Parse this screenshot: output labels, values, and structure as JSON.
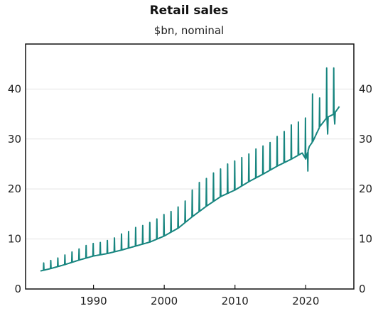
{
  "chart_data": {
    "type": "line",
    "title": "Retail sales",
    "subtitle": "$bn, nominal",
    "xlabel": "",
    "ylabel": "",
    "xlim": [
      1980.4,
      2026.8
    ],
    "ylim": [
      0,
      49
    ],
    "grid": true,
    "legend": "none",
    "x_ticks": [
      1990,
      2000,
      2010,
      2020
    ],
    "x_tick_labels": [
      "1990",
      "2000",
      "2010",
      "2020"
    ],
    "y_ticks": [
      0,
      10,
      20,
      30,
      40
    ],
    "y_tick_labels_left": [
      "0",
      "10",
      "20",
      "30",
      "40"
    ],
    "y_tick_labels_right": [
      "0",
      "10",
      "20",
      "30",
      "40"
    ],
    "series": [
      {
        "color": "#17857f",
        "frequency": "monthly",
        "start": 1982.5,
        "end": 2024.75,
        "trend_points": [
          [
            1982.5,
            3.6
          ],
          [
            1984,
            4.1
          ],
          [
            1986,
            4.9
          ],
          [
            1988,
            5.8
          ],
          [
            1990,
            6.6
          ],
          [
            1992,
            7.1
          ],
          [
            1994,
            7.8
          ],
          [
            1996,
            8.6
          ],
          [
            1998,
            9.4
          ],
          [
            2000,
            10.6
          ],
          [
            2002,
            12.2
          ],
          [
            2004,
            14.5
          ],
          [
            2006,
            16.6
          ],
          [
            2008,
            18.5
          ],
          [
            2010,
            19.8
          ],
          [
            2012,
            21.5
          ],
          [
            2014,
            23.0
          ],
          [
            2016,
            24.6
          ],
          [
            2018,
            26.0
          ],
          [
            2019.5,
            27.2
          ],
          [
            2020,
            26.0
          ],
          [
            2020.5,
            28.5
          ],
          [
            2021,
            29.5
          ],
          [
            2022,
            32.5
          ],
          [
            2023,
            34.3
          ],
          [
            2024,
            35.0
          ],
          [
            2024.75,
            36.5
          ]
        ],
        "december_peaks": [
          [
            1982.96,
            5.2
          ],
          [
            1983.96,
            5.7
          ],
          [
            1984.96,
            6.2
          ],
          [
            1985.96,
            6.8
          ],
          [
            1986.96,
            7.4
          ],
          [
            1987.96,
            8.0
          ],
          [
            1988.96,
            8.7
          ],
          [
            1989.96,
            9.1
          ],
          [
            1990.96,
            9.3
          ],
          [
            1991.96,
            9.7
          ],
          [
            1992.96,
            10.2
          ],
          [
            1993.96,
            11.0
          ],
          [
            1994.96,
            11.5
          ],
          [
            1995.96,
            12.3
          ],
          [
            1996.96,
            12.7
          ],
          [
            1997.96,
            13.3
          ],
          [
            1998.96,
            14.0
          ],
          [
            1999.96,
            14.9
          ],
          [
            2000.96,
            15.5
          ],
          [
            2001.96,
            16.4
          ],
          [
            2002.96,
            17.6
          ],
          [
            2003.96,
            19.8
          ],
          [
            2004.96,
            21.3
          ],
          [
            2005.96,
            22.1
          ],
          [
            2006.96,
            23.2
          ],
          [
            2007.96,
            24.0
          ],
          [
            2008.96,
            25.0
          ],
          [
            2009.96,
            25.6
          ],
          [
            2010.96,
            26.3
          ],
          [
            2011.96,
            27.0
          ],
          [
            2012.96,
            28.0
          ],
          [
            2013.96,
            28.6
          ],
          [
            2014.96,
            29.3
          ],
          [
            2015.96,
            30.5
          ],
          [
            2016.96,
            31.5
          ],
          [
            2017.96,
            32.8
          ],
          [
            2018.96,
            33.4
          ],
          [
            2019.96,
            34.2
          ],
          [
            2020.96,
            39.0
          ],
          [
            2021.96,
            38.2
          ],
          [
            2022.96,
            44.2
          ],
          [
            2023.96,
            44.2
          ]
        ],
        "dips": [
          [
            2020.3,
            23.6
          ],
          [
            2021.55,
            31.2
          ],
          [
            2023.1,
            31.0
          ],
          [
            2024.1,
            33.0
          ]
        ]
      }
    ]
  }
}
